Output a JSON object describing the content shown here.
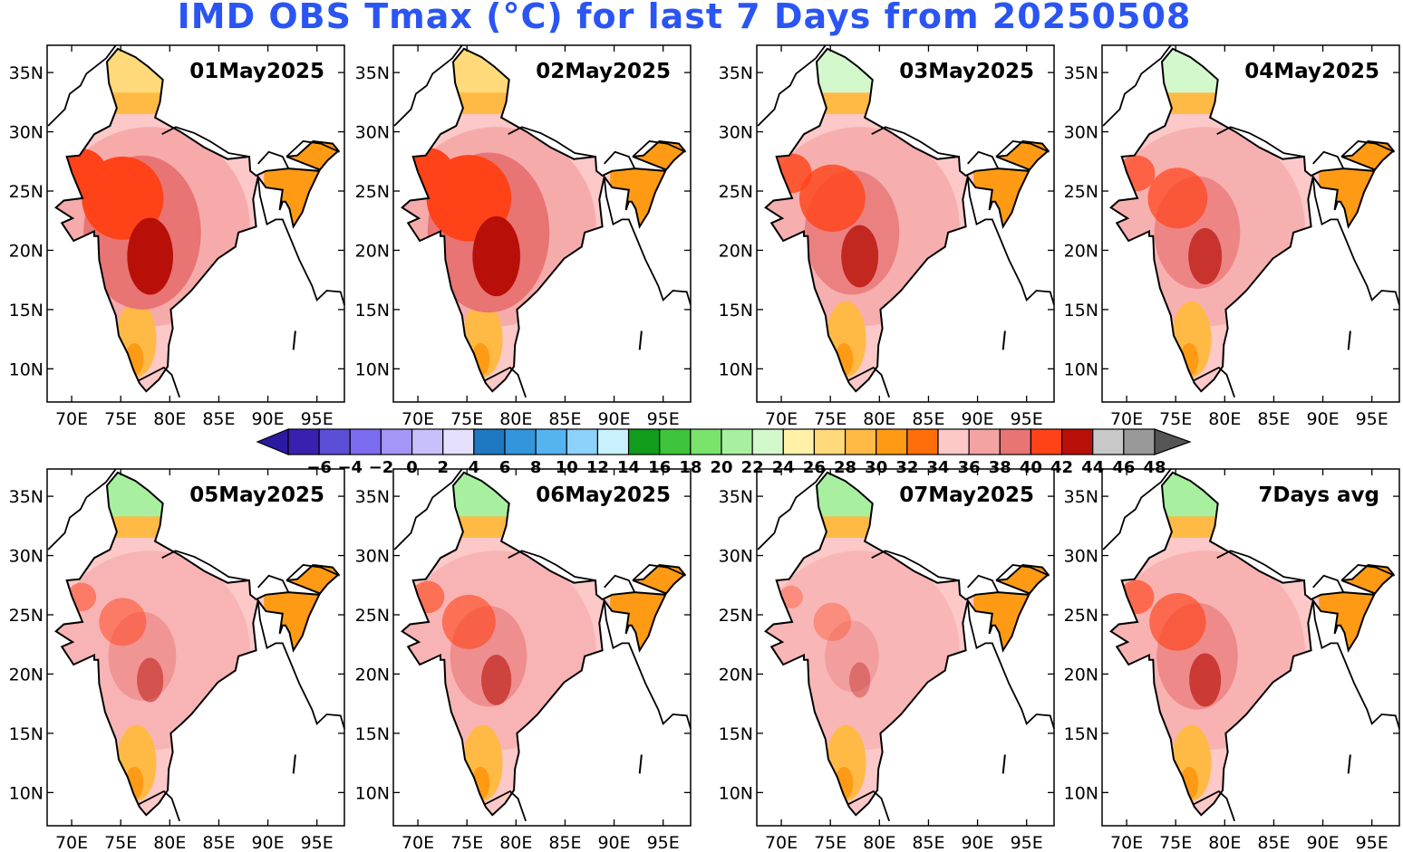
{
  "title": "IMD OBS Tmax (°C) for last 7 Days from 20250508",
  "panels": [
    {
      "label": "01May2025",
      "level": 0.78,
      "hot": 0.8
    },
    {
      "label": "02May2025",
      "level": 0.74,
      "hot": 0.85
    },
    {
      "label": "03May2025",
      "level": 0.58,
      "hot": 0.55
    },
    {
      "label": "04May2025",
      "level": 0.5,
      "hot": 0.45
    },
    {
      "label": "05May2025",
      "level": 0.3,
      "hot": 0.25
    },
    {
      "label": "06May2025",
      "level": 0.28,
      "hot": 0.35
    },
    {
      "label": "07May2025",
      "level": 0.22,
      "hot": 0.1
    },
    {
      "label": "7Days avg",
      "level": 0.4,
      "hot": 0.4
    }
  ],
  "y_ticks": [
    "35N",
    "30N",
    "25N",
    "20N",
    "15N",
    "10N"
  ],
  "x_ticks": [
    "70E",
    "75E",
    "80E",
    "85E",
    "90E",
    "95E"
  ],
  "colorbar": {
    "labels": [
      "−6",
      "−4",
      "−2",
      "0",
      "2",
      "4",
      "6",
      "8",
      "10",
      "12",
      "14",
      "16",
      "18",
      "20",
      "22",
      "24",
      "26",
      "28",
      "30",
      "32",
      "34",
      "36",
      "38",
      "40",
      "42",
      "44",
      "46",
      "48"
    ],
    "colors": [
      "#3b1fb0",
      "#5a4fd6",
      "#7b6cf0",
      "#a396f7",
      "#c8c0fb",
      "#e4e0fd",
      "#1e78c2",
      "#3395db",
      "#55b3f0",
      "#8cd2fa",
      "#c9f1fd",
      "#119c1c",
      "#3ec43a",
      "#79e36c",
      "#a8f0a0",
      "#d3f8cc",
      "#fff2a8",
      "#ffd97a",
      "#ffba45",
      "#ff9a14",
      "#ff6e0a",
      "#fcc8c8",
      "#f4a3a3",
      "#e87474",
      "#ff4218",
      "#b81008",
      "#c8c8c8",
      "#999999"
    ],
    "min_color": "#2a1aa0",
    "max_color": "#555555"
  }
}
